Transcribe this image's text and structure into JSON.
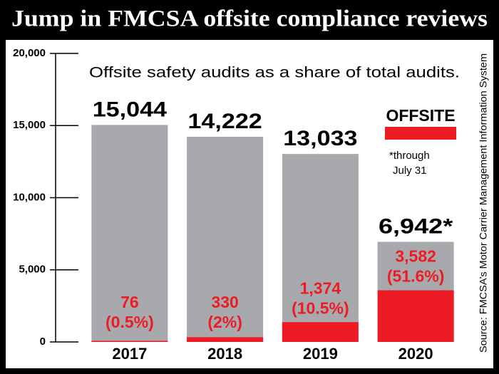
{
  "chart_data": {
    "type": "bar",
    "title": "Jump in FMCSA offsite compliance reviews",
    "subtitle": "Offsite safety audits as a share of total audits.",
    "note": [
      "*through",
      "July 31"
    ],
    "source": "Source: FMCSA’s Motor Carrier Management Information System",
    "categories": [
      "2017",
      "2018",
      "2019",
      "2020"
    ],
    "series": [
      {
        "color": "#a7a9ac",
        "values": [
          15044,
          14222,
          13033,
          6942
        ],
        "value_labels": [
          "15,044",
          "14,222",
          "13,033",
          "6,942*"
        ]
      },
      {
        "name": "OFFSITE",
        "color": "#ed1c24",
        "values": [
          76,
          330,
          1374,
          3582
        ],
        "value_labels": [
          [
            "76",
            "(0.5%)"
          ],
          [
            "330",
            "(2%)"
          ],
          [
            "1,374",
            "(10.5%)"
          ],
          [
            "3,582",
            "(51.6%)"
          ]
        ]
      }
    ],
    "ylim": [
      0,
      20000
    ],
    "yticks": [
      0,
      {
        "value": 5000,
        "label": "5,000"
      },
      {
        "value": 10000,
        "label": "10,000"
      },
      {
        "value": 15000,
        "label": "15,000"
      },
      {
        "value": 20000,
        "label": "20,000"
      }
    ],
    "legend": "right"
  }
}
